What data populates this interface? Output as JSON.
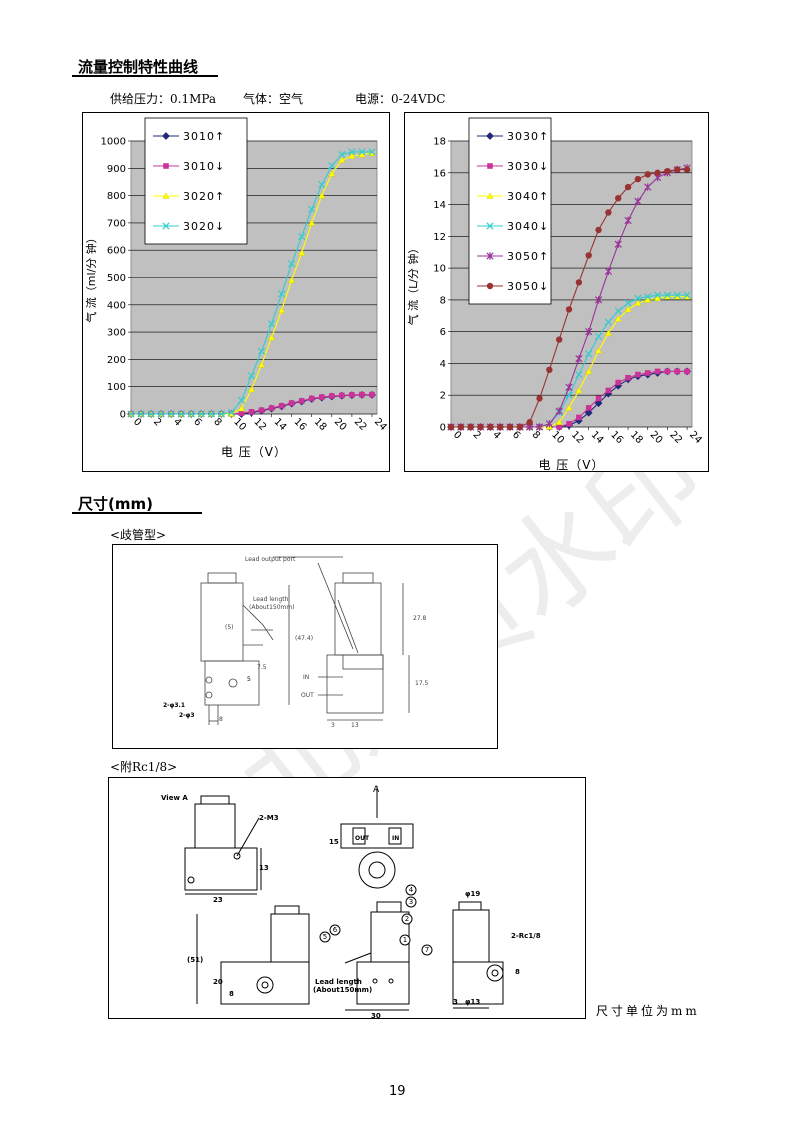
{
  "heading_flow": "流量控制特性曲线",
  "conditions": {
    "pressure": "供给压力：0.1MPa",
    "gas": "气体：空气",
    "power": "电源：0-24VDC"
  },
  "heading_dims": "尺寸(mm)",
  "manifold_label": "<歧管型>",
  "rc_label": "<附Rc1/8>",
  "unit_note": "尺寸单位为mm",
  "page_number": "19",
  "watermark": "北京员水印",
  "drawing1": {
    "lead_output_port": "Lead output port",
    "lead_length": "Lead length",
    "about": "(About150mm)",
    "dim_5": "(5)",
    "dim_278": "27.8",
    "dim_474": "(47.4)",
    "dim_175": "17.5",
    "dim_13": "13",
    "dim_3": "3",
    "in_label": "IN",
    "out_label": "OUT",
    "phi31": "2-φ3.1",
    "phi3": "2-φ3",
    "dim_8": "8",
    "dim_5b": "5",
    "dim_75": "7.5"
  },
  "drawing2": {
    "view_a": "View A",
    "a_label": "A",
    "m3": "2-M3",
    "dim_13": "13",
    "dim_23": "23",
    "dim_15": "15",
    "dim_51": "(51)",
    "dim_20": "20",
    "dim_8": "8",
    "dim_30": "30",
    "dim_phi19": "φ19",
    "dim_phi13": "φ13",
    "dim_3": "3",
    "dim_8b": "8",
    "rc": "2-Rc1/8",
    "lead_length": "Lead length",
    "about": "(About150mm)",
    "in_label": "IN",
    "out_label": "OUT",
    "callouts": [
      "1",
      "2",
      "3",
      "4",
      "5",
      "6",
      "7"
    ]
  },
  "chart_data": [
    {
      "type": "line",
      "xlabel": "电 压（V）",
      "ylabel": "气 流（ml/分 钟）",
      "ylim": [
        0,
        1000
      ],
      "yticks": [
        "0",
        "100",
        "200",
        "300",
        "400",
        "500",
        "600",
        "700",
        "800",
        "900",
        "1000"
      ],
      "xticks": [
        "0",
        "2",
        "4",
        "6",
        "8",
        "10",
        "12",
        "14",
        "16",
        "18",
        "20",
        "22",
        "24"
      ],
      "x": [
        0,
        1,
        2,
        3,
        4,
        5,
        6,
        7,
        8,
        9,
        10,
        11,
        12,
        13,
        14,
        15,
        16,
        17,
        18,
        19,
        20,
        21,
        22,
        23,
        24
      ],
      "legend_position": "top-left",
      "series": [
        {
          "name": "3010↑",
          "color": "#1f2a7a",
          "marker": "diamond",
          "values": [
            0,
            0,
            0,
            0,
            0,
            0,
            0,
            0,
            0,
            0,
            0,
            0,
            5,
            12,
            20,
            28,
            38,
            46,
            55,
            60,
            64,
            67,
            69,
            70,
            70
          ]
        },
        {
          "name": "3010↓",
          "color": "#cc3399",
          "marker": "square",
          "values": [
            0,
            0,
            0,
            0,
            0,
            0,
            0,
            0,
            0,
            0,
            0,
            3,
            8,
            14,
            22,
            30,
            40,
            48,
            57,
            62,
            66,
            68,
            70,
            71,
            71
          ]
        },
        {
          "name": "3020↑",
          "color": "#ffff00",
          "marker": "triangle",
          "values": [
            0,
            0,
            0,
            0,
            0,
            0,
            0,
            0,
            0,
            0,
            0,
            20,
            90,
            180,
            280,
            380,
            490,
            590,
            700,
            800,
            880,
            930,
            945,
            950,
            955
          ]
        },
        {
          "name": "3020↓",
          "color": "#33cccc",
          "marker": "x",
          "values": [
            0,
            0,
            0,
            0,
            0,
            0,
            0,
            0,
            0,
            0,
            5,
            50,
            140,
            230,
            330,
            440,
            550,
            650,
            750,
            840,
            910,
            950,
            960,
            960,
            960
          ]
        }
      ]
    },
    {
      "type": "line",
      "xlabel": "电 压（V）",
      "ylabel": "气 流（L/分 钟）",
      "ylim": [
        0,
        18
      ],
      "yticks": [
        "0",
        "2",
        "4",
        "6",
        "8",
        "10",
        "12",
        "14",
        "16",
        "18"
      ],
      "xticks": [
        "0",
        "2",
        "4",
        "6",
        "8",
        "10",
        "12",
        "14",
        "16",
        "18",
        "20",
        "22",
        "24"
      ],
      "x": [
        0,
        1,
        2,
        3,
        4,
        5,
        6,
        7,
        8,
        9,
        10,
        11,
        12,
        13,
        14,
        15,
        16,
        17,
        18,
        19,
        20,
        21,
        22,
        23,
        24
      ],
      "legend_position": "top-left",
      "series": [
        {
          "name": "3030↑",
          "color": "#1f2a7a",
          "marker": "diamond",
          "values": [
            0,
            0,
            0,
            0,
            0,
            0,
            0,
            0,
            0,
            0,
            0,
            0,
            0.1,
            0.4,
            0.9,
            1.5,
            2.1,
            2.6,
            3.0,
            3.2,
            3.3,
            3.4,
            3.5,
            3.5,
            3.5
          ]
        },
        {
          "name": "3030↓",
          "color": "#cc3399",
          "marker": "square",
          "values": [
            0,
            0,
            0,
            0,
            0,
            0,
            0,
            0,
            0,
            0,
            0,
            0,
            0.2,
            0.6,
            1.2,
            1.8,
            2.3,
            2.8,
            3.1,
            3.3,
            3.4,
            3.5,
            3.5,
            3.5,
            3.5
          ]
        },
        {
          "name": "3040↑",
          "color": "#ffff00",
          "marker": "triangle",
          "values": [
            0,
            0,
            0,
            0,
            0,
            0,
            0,
            0,
            0,
            0,
            0,
            0.3,
            1.2,
            2.3,
            3.5,
            4.8,
            5.9,
            6.8,
            7.4,
            7.8,
            8.0,
            8.1,
            8.2,
            8.2,
            8.2
          ]
        },
        {
          "name": "3040↓",
          "color": "#33cccc",
          "marker": "x",
          "values": [
            0,
            0,
            0,
            0,
            0,
            0,
            0,
            0,
            0,
            0,
            0.2,
            0.9,
            2.0,
            3.3,
            4.6,
            5.7,
            6.6,
            7.3,
            7.8,
            8.1,
            8.2,
            8.3,
            8.3,
            8.3,
            8.3
          ]
        },
        {
          "name": "3050↑",
          "color": "#993399",
          "marker": "star",
          "values": [
            0,
            0,
            0,
            0,
            0,
            0,
            0,
            0,
            0,
            0,
            0.2,
            1.0,
            2.5,
            4.3,
            6.0,
            8.0,
            9.8,
            11.5,
            13.0,
            14.2,
            15.1,
            15.7,
            16.0,
            16.2,
            16.3
          ]
        },
        {
          "name": "3050↓",
          "color": "#993333",
          "marker": "circle",
          "values": [
            0,
            0,
            0,
            0,
            0,
            0,
            0,
            0,
            0.3,
            1.8,
            3.6,
            5.5,
            7.4,
            9.1,
            10.8,
            12.4,
            13.5,
            14.4,
            15.1,
            15.6,
            15.9,
            16.0,
            16.1,
            16.2,
            16.2
          ]
        }
      ]
    }
  ]
}
